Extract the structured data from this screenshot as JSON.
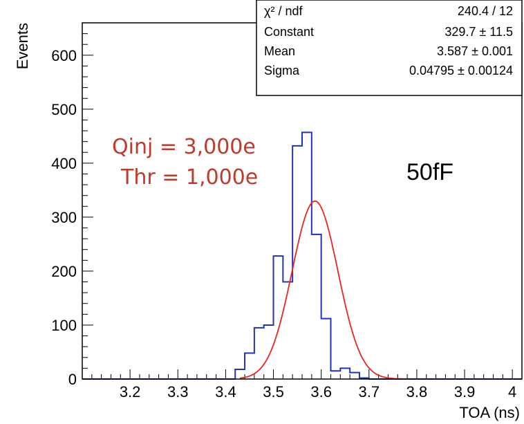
{
  "chart_data": {
    "type": "histogram",
    "xlabel": "TOA (ns)",
    "ylabel": "Events",
    "xlim": [
      3.1,
      4.02
    ],
    "ylim": [
      0,
      660
    ],
    "x_ticks": [
      "3.2",
      "3.3",
      "3.4",
      "3.5",
      "3.6",
      "3.7",
      "3.8",
      "3.9",
      "4"
    ],
    "y_ticks": [
      "0",
      "100",
      "200",
      "300",
      "400",
      "500",
      "600"
    ],
    "bin_edges": [
      3.4,
      3.42,
      3.44,
      3.46,
      3.48,
      3.5,
      3.52,
      3.54,
      3.56,
      3.58,
      3.6,
      3.62,
      3.64,
      3.66,
      3.68,
      3.7,
      3.72,
      3.74
    ],
    "counts": [
      0,
      18,
      48,
      95,
      100,
      228,
      180,
      432,
      457,
      268,
      112,
      15,
      20,
      12,
      2,
      0,
      0
    ],
    "colors": {
      "histogram": "#2233bb",
      "fit": "#ee2222",
      "annotation": "#c0392b"
    },
    "fit": {
      "function": "gaus",
      "constant": 329.7,
      "mean": 3.587,
      "sigma": 0.04795
    },
    "stats_box": [
      {
        "label": "χ² / ndf",
        "value": "240.4 / 12"
      },
      {
        "label": "Constant",
        "value": "329.7 ± 11.5"
      },
      {
        "label": "Mean",
        "value": "3.587 ± 0.001"
      },
      {
        "label": "Sigma",
        "value": "0.04795 ± 0.00124"
      }
    ],
    "annotations": {
      "charge": "Qinj = 3,000e",
      "threshold": "Thr = 1,000e",
      "capacitance": "50fF"
    }
  }
}
